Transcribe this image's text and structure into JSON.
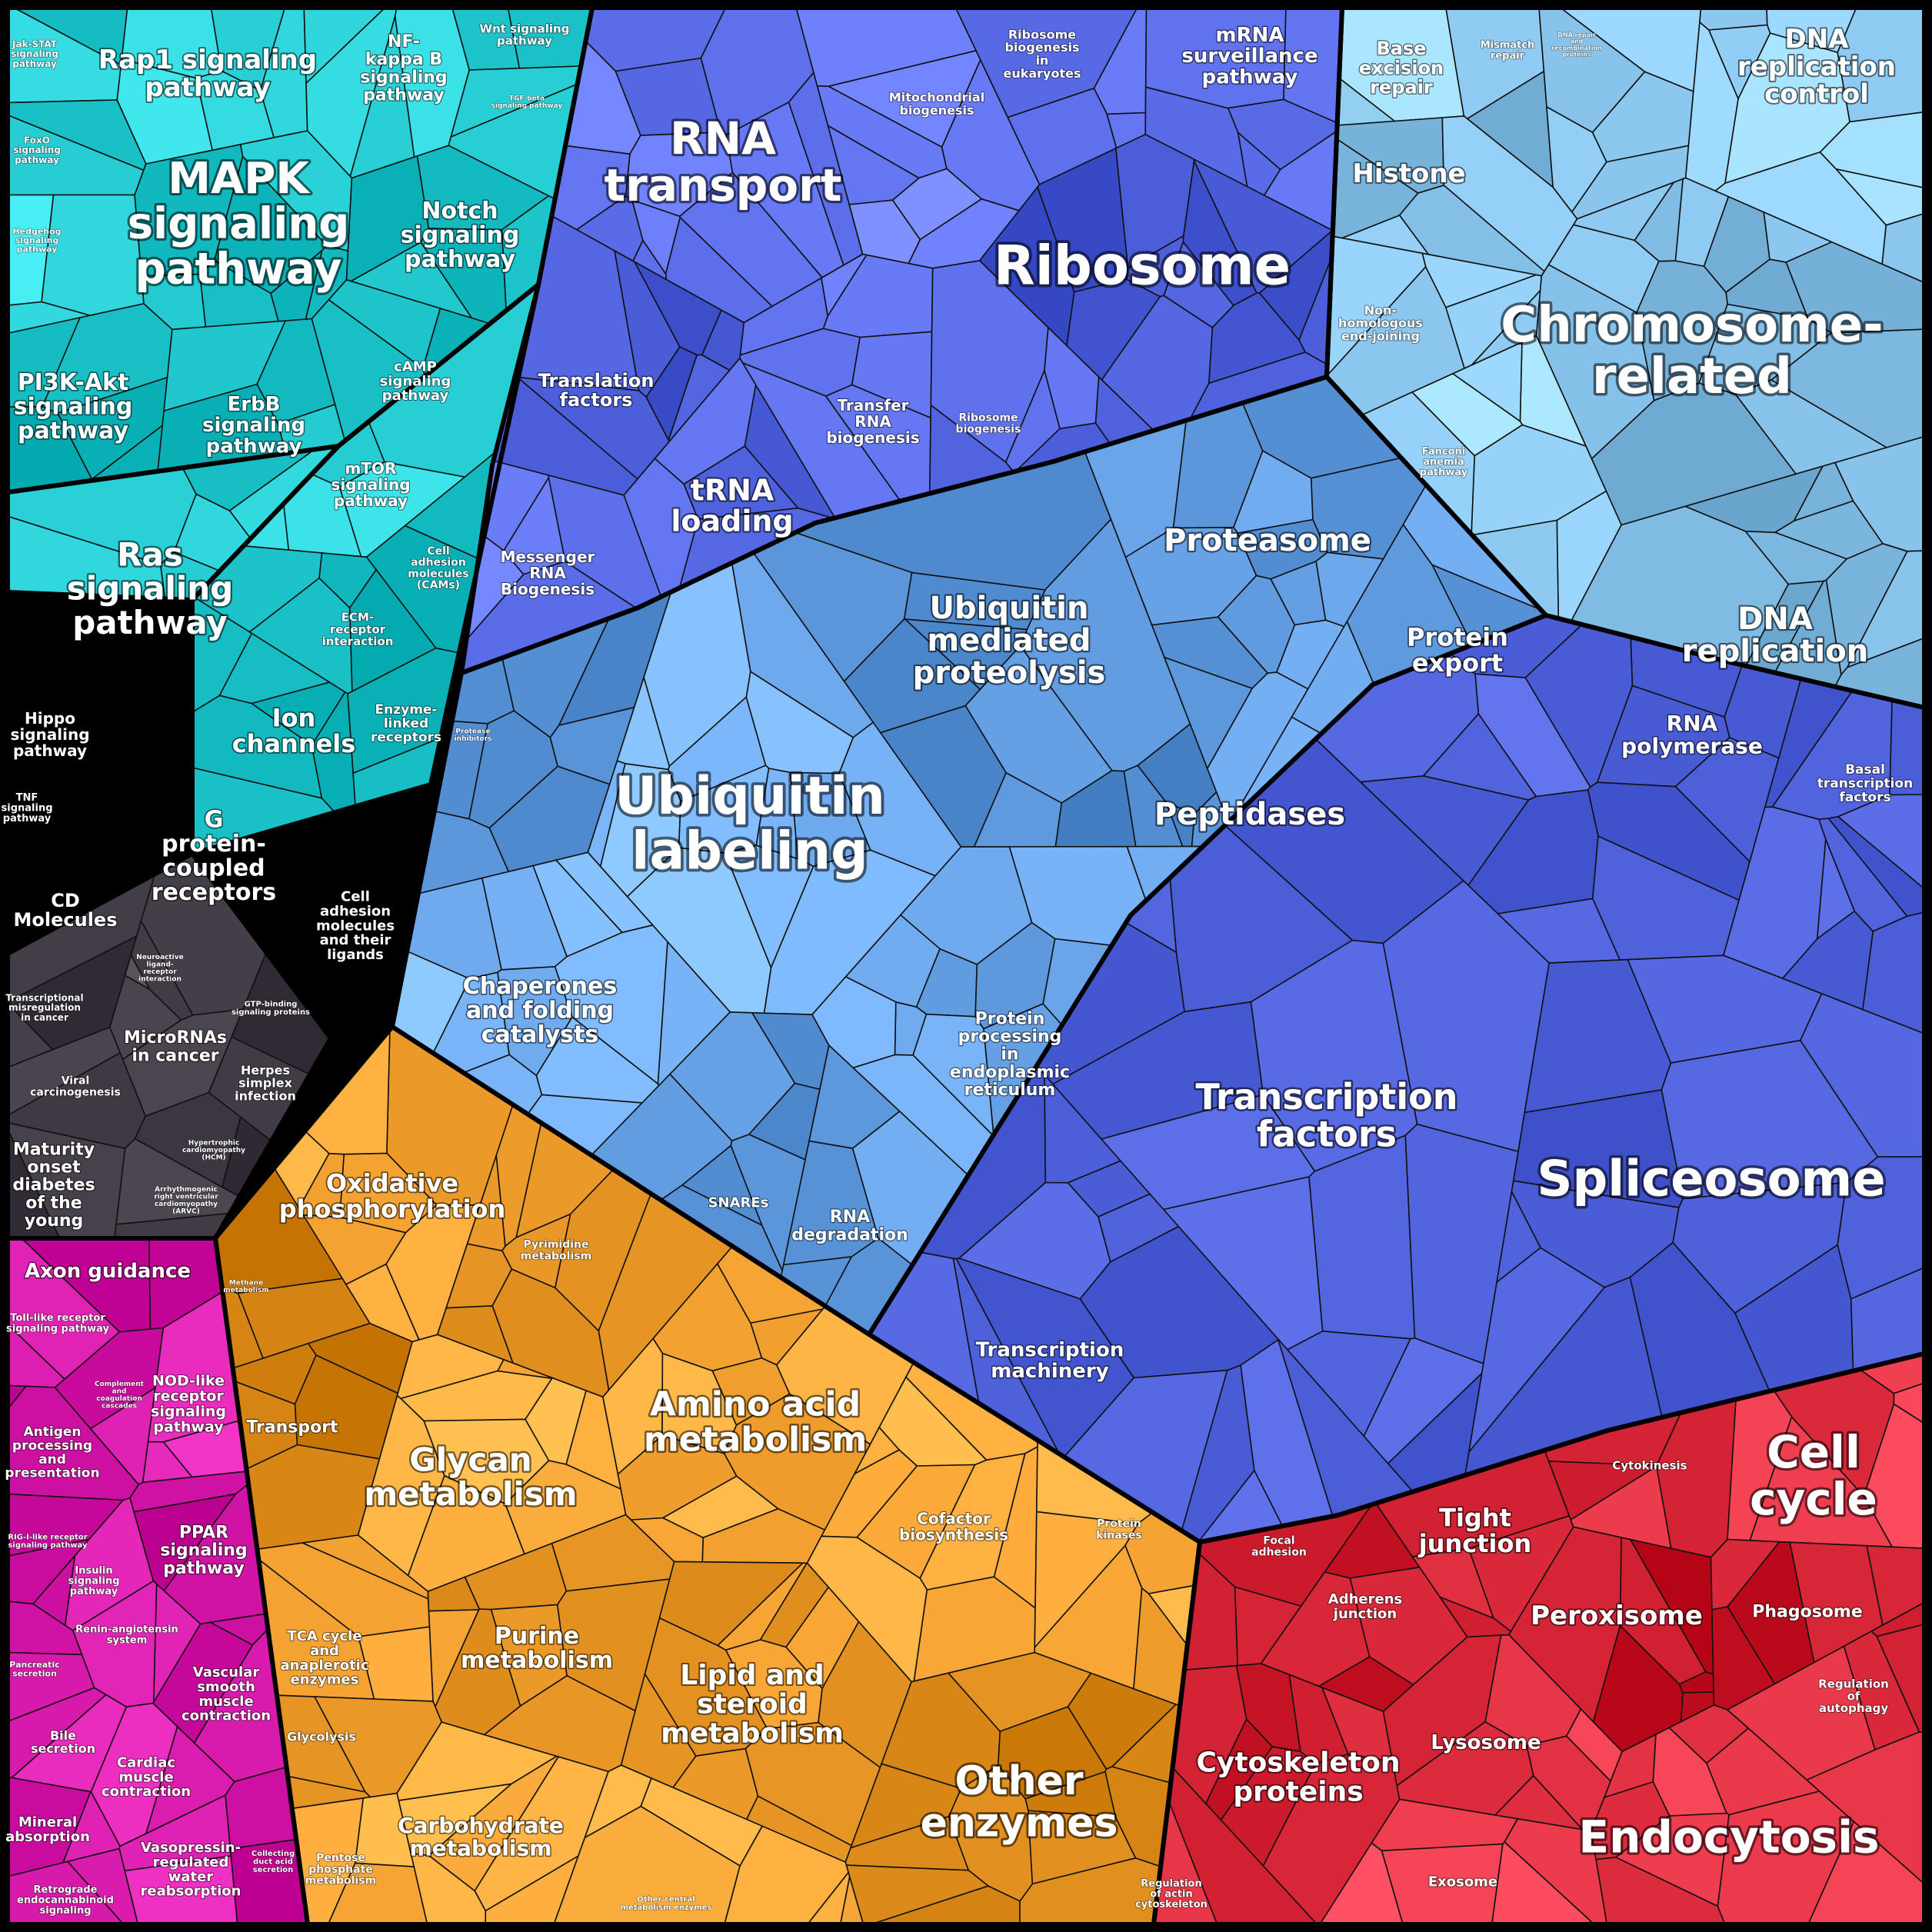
{
  "groups": [
    {
      "id": "signaling",
      "color": "#1fc7cc",
      "cells": [
        [
          [
            10,
            10
          ],
          [
            770,
            10
          ],
          [
            700,
            370
          ],
          [
            440,
            580
          ],
          [
            10,
            640
          ]
        ],
        [
          [
            10,
            640
          ],
          [
            440,
            580
          ],
          [
            250,
            780
          ],
          [
            10,
            770
          ]
        ],
        [
          [
            440,
            580
          ],
          [
            700,
            370
          ],
          [
            560,
            1020
          ],
          [
            250,
            1110
          ],
          [
            250,
            780
          ]
        ]
      ],
      "labels": [
        {
          "text": "Rap1 signaling\npathway",
          "size": 34,
          "interactable": true
        },
        {
          "text": "MAPK\nsignaling\npathway",
          "size": 56,
          "interactable": true
        },
        {
          "text": "NF-\nkappa B\nsignaling\npathway",
          "size": 22,
          "interactable": true
        },
        {
          "text": "Wnt signaling\npathway",
          "size": 15,
          "interactable": true
        },
        {
          "text": "TGF-beta\nsignaling pathway",
          "size": 9,
          "interactable": true
        },
        {
          "text": "Jak-STAT\nsignaling\npathway",
          "size": 12,
          "interactable": true
        },
        {
          "text": "FoxO\nsignaling\npathway",
          "size": 12,
          "interactable": true
        },
        {
          "text": "Hedgehog\nsignaling\npathway",
          "size": 11,
          "interactable": true
        },
        {
          "text": "Notch\nsignaling\npathway",
          "size": 30,
          "interactable": true
        },
        {
          "text": "PI3K-Akt\nsignaling\npathway",
          "size": 30,
          "interactable": true
        },
        {
          "text": "ErbB\nsignaling\npathway",
          "size": 26,
          "interactable": true
        },
        {
          "text": "cAMP\nsignaling\npathway",
          "size": 18,
          "interactable": true
        },
        {
          "text": "mTOR\nsignaling\npathway",
          "size": 20,
          "interactable": true
        },
        {
          "text": "Ras\nsignaling\npathway",
          "size": 42,
          "interactable": true
        },
        {
          "text": "Cell\nadhesion\nmolecules\n(CAMs)",
          "size": 14,
          "interactable": true
        },
        {
          "text": "ECM-\nreceptor\ninteraction",
          "size": 15,
          "interactable": true
        },
        {
          "text": "Hippo\nsignaling\npathway",
          "size": 20,
          "interactable": true
        },
        {
          "text": "Ion\nchannels",
          "size": 32,
          "interactable": true
        },
        {
          "text": "Enzyme-\nlinked\nreceptors",
          "size": 17,
          "interactable": true
        },
        {
          "text": "TNF\nsignaling\npathway",
          "size": 13,
          "interactable": true
        },
        {
          "text": "G\nprotein-\ncoupled\nreceptors",
          "size": 30,
          "interactable": true
        },
        {
          "text": "CD\nMolecules",
          "size": 24,
          "interactable": true
        },
        {
          "text": "Cell\nadhesion\nmolecules\nand their\nligands",
          "size": 18,
          "interactable": true
        },
        {
          "text": "Neuroactive\nligand-\nreceptor\ninteraction",
          "size": 9,
          "interactable": true
        },
        {
          "text": "GTP-binding\nsignaling proteins",
          "size": 10,
          "interactable": true
        }
      ]
    },
    {
      "id": "disease",
      "color": "#3b3640",
      "cells": [
        [
          [
            10,
            1240
          ],
          [
            250,
            1110
          ],
          [
            430,
            1350
          ],
          [
            280,
            1610
          ],
          [
            10,
            1610
          ]
        ]
      ],
      "labels": [
        {
          "text": "Transcriptional\nmisregulation\nin cancer",
          "size": 12,
          "interactable": true
        },
        {
          "text": "MicroRNAs\nin cancer",
          "size": 22,
          "interactable": true
        },
        {
          "text": "Viral\ncarcinogenesis",
          "size": 14,
          "interactable": true
        },
        {
          "text": "Herpes\nsimplex\ninfection",
          "size": 16,
          "interactable": true
        },
        {
          "text": "Hypertrophic\ncardiomyopathy\n(HCM)",
          "size": 9,
          "interactable": true
        },
        {
          "text": "Maturity\nonset\ndiabetes\nof the\nyoung",
          "size": 22,
          "interactable": true
        },
        {
          "text": "Arrhythmogenic\nright ventricular\ncardiomyopathy\n(ARVC)",
          "size": 9,
          "interactable": true
        }
      ]
    },
    {
      "id": "tissue",
      "color": "#d416a8",
      "cells": [
        [
          [
            10,
            1610
          ],
          [
            280,
            1610
          ],
          [
            400,
            2502
          ],
          [
            10,
            2502
          ]
        ]
      ],
      "labels": [
        {
          "text": "Axon guidance",
          "size": 26,
          "interactable": true
        },
        {
          "text": "Toll-like receptor\nsignaling pathway",
          "size": 13,
          "interactable": true
        },
        {
          "text": "Complement\nand\ncoagulation\ncascades",
          "size": 9,
          "interactable": true
        },
        {
          "text": "NOD-like\nreceptor\nsignaling\npathway",
          "size": 19,
          "interactable": true
        },
        {
          "text": "Antigen\nprocessing\nand\npresentation",
          "size": 17,
          "interactable": true
        },
        {
          "text": "RIG-I-like receptor\nsignaling pathway",
          "size": 10,
          "interactable": true
        },
        {
          "text": "PPAR\nsignaling\npathway",
          "size": 22,
          "interactable": true
        },
        {
          "text": "Insulin\nsignaling\npathway",
          "size": 13,
          "interactable": true
        },
        {
          "text": "Renin-angiotensin\nsystem",
          "size": 13,
          "interactable": true
        },
        {
          "text": "Pancreatic\nsecretion",
          "size": 11,
          "interactable": true
        },
        {
          "text": "Vascular\nsmooth\nmuscle\ncontraction",
          "size": 18,
          "interactable": true
        },
        {
          "text": "Bile\nsecretion",
          "size": 16,
          "interactable": true
        },
        {
          "text": "Cardiac\nmuscle\ncontraction",
          "size": 18,
          "interactable": true
        },
        {
          "text": "Mineral\nabsorption",
          "size": 18,
          "interactable": true
        },
        {
          "text": "Vasopressin-\nregulated\nwater\nreabsorption",
          "size": 18,
          "interactable": true
        },
        {
          "text": "Collecting\nduct acid\nsecretion",
          "size": 10,
          "interactable": true
        },
        {
          "text": "Retrograde\nendocannabinoid\nsignaling",
          "size": 13,
          "interactable": true
        }
      ]
    },
    {
      "id": "rna",
      "color": "#5a6ce8",
      "cells": [
        [
          [
            770,
            10
          ],
          [
            1745,
            10
          ],
          [
            1725,
            490
          ],
          [
            1370,
            600
          ],
          [
            1060,
            680
          ],
          [
            830,
            790
          ],
          [
            600,
            875
          ],
          [
            640,
            605
          ],
          [
            700,
            370
          ]
        ]
      ],
      "labels": [
        {
          "text": "RNA\ntransport",
          "size": 58,
          "interactable": true
        },
        {
          "text": "Mitochondrial\nbiogenesis",
          "size": 16,
          "interactable": true
        },
        {
          "text": "Ribosome\nbiogenesis\nin\neukaryotes",
          "size": 16,
          "interactable": true
        },
        {
          "text": "mRNA\nsurveillance\npathway",
          "size": 26,
          "interactable": true
        },
        {
          "text": "Ribosome",
          "size": 70,
          "interactable": true
        },
        {
          "text": "Translation\nfactors",
          "size": 24,
          "interactable": true
        },
        {
          "text": "tRNA\nloading",
          "size": 38,
          "interactable": true
        },
        {
          "text": "Transfer\nRNA\nbiogenesis",
          "size": 20,
          "interactable": true
        },
        {
          "text": "Ribosome\nbiogenesis",
          "size": 14,
          "interactable": true
        },
        {
          "text": "Messenger\nRNA\nBiogenesis",
          "size": 20,
          "interactable": true
        }
      ]
    },
    {
      "id": "chromosome",
      "color": "#8cc8f0",
      "cells": [
        [
          [
            1745,
            10
          ],
          [
            2502,
            10
          ],
          [
            2502,
            920
          ],
          [
            2245,
            860
          ],
          [
            2010,
            800
          ],
          [
            1725,
            490
          ]
        ]
      ],
      "labels": [
        {
          "text": "Base\nexcision\nrepair",
          "size": 24,
          "interactable": true
        },
        {
          "text": "Mismatch\nrepair",
          "size": 13,
          "interactable": true
        },
        {
          "text": "DNA repair\nand\nrecombination\nproteins",
          "size": 8,
          "interactable": true
        },
        {
          "text": "DNA\nreplication\ncontrol",
          "size": 34,
          "interactable": true
        },
        {
          "text": "Histone",
          "size": 34,
          "interactable": true
        },
        {
          "text": "Non-\nhomologous\nend-joining",
          "size": 16,
          "interactable": true
        },
        {
          "text": "Chromosome-\nrelated",
          "size": 64,
          "interactable": true
        },
        {
          "text": "Fanconi\nanemia\npathway",
          "size": 13,
          "interactable": true
        },
        {
          "text": "DNA\nreplication",
          "size": 40,
          "interactable": true
        }
      ]
    },
    {
      "id": "protein",
      "color": "#6aa5ea",
      "cells": [
        [
          [
            600,
            875
          ],
          [
            830,
            790
          ],
          [
            1060,
            680
          ],
          [
            1370,
            600
          ],
          [
            1725,
            490
          ],
          [
            2010,
            800
          ],
          [
            1785,
            890
          ],
          [
            1470,
            1190
          ],
          [
            1130,
            1735
          ],
          [
            510,
            1335
          ]
        ]
      ],
      "labels": [
        {
          "text": "Ubiquitin\nmediated\nproteolysis",
          "size": 40,
          "interactable": true
        },
        {
          "text": "Proteasome",
          "size": 40,
          "interactable": true
        },
        {
          "text": "Protein\nexport",
          "size": 32,
          "interactable": true
        },
        {
          "text": "Protease\ninhibitors",
          "size": 9,
          "interactable": true
        },
        {
          "text": "Ubiquitin\nlabeling",
          "size": 68,
          "interactable": true
        },
        {
          "text": "Peptidases",
          "size": 40,
          "interactable": true
        },
        {
          "text": "Chaperones\nand folding\ncatalysts",
          "size": 30,
          "interactable": true
        },
        {
          "text": "Protein\nprocessing\nin\nendoplasmic\nreticulum",
          "size": 22,
          "interactable": true
        },
        {
          "text": "SNAREs",
          "size": 18,
          "interactable": true
        },
        {
          "text": "RNA\ndegradation",
          "size": 22,
          "interactable": true
        }
      ]
    },
    {
      "id": "transcription",
      "color": "#4455d0",
      "cells": [
        [
          [
            1130,
            1735
          ],
          [
            1470,
            1190
          ],
          [
            1785,
            890
          ],
          [
            2010,
            800
          ],
          [
            2245,
            860
          ],
          [
            2502,
            920
          ],
          [
            2502,
            1760
          ],
          [
            2090,
            1860
          ],
          [
            1740,
            1970
          ],
          [
            1560,
            2005
          ]
        ]
      ],
      "labels": [
        {
          "text": "RNA\npolymerase",
          "size": 28,
          "interactable": true
        },
        {
          "text": "Basal\ntranscription\nfactors",
          "size": 17,
          "interactable": true
        },
        {
          "text": "Transcription\nfactors",
          "size": 46,
          "interactable": true
        },
        {
          "text": "Spliceosome",
          "size": 64,
          "interactable": true
        },
        {
          "text": "Transcription\nmachinery",
          "size": 26,
          "interactable": true
        }
      ]
    },
    {
      "id": "metabolism",
      "color": "#eb9a2a",
      "cells": [
        [
          [
            510,
            1335
          ],
          [
            1130,
            1735
          ],
          [
            1560,
            2005
          ],
          [
            1500,
            2502
          ],
          [
            400,
            2502
          ],
          [
            280,
            1610
          ]
        ]
      ],
      "labels": [
        {
          "text": "Oxidative\nphosphorylation",
          "size": 32,
          "interactable": true
        },
        {
          "text": "Pyrimidine\nmetabolism",
          "size": 14,
          "interactable": true
        },
        {
          "text": "Methane\nmetabolism",
          "size": 9,
          "interactable": true
        },
        {
          "text": "Amino acid\nmetabolism",
          "size": 44,
          "interactable": true
        },
        {
          "text": "Transport",
          "size": 22,
          "interactable": true
        },
        {
          "text": "Glycan\nmetabolism",
          "size": 42,
          "interactable": true
        },
        {
          "text": "Cofactor\nbiosynthesis",
          "size": 20,
          "interactable": true
        },
        {
          "text": "Protein\nkinases",
          "size": 14,
          "interactable": true
        },
        {
          "text": "Purine\nmetabolism",
          "size": 30,
          "interactable": true
        },
        {
          "text": "Lipid and\nsteroid\nmetabolism",
          "size": 36,
          "interactable": true
        },
        {
          "text": "TCA cycle\nand\nanaplerotic\nenzymes",
          "size": 18,
          "interactable": true
        },
        {
          "text": "Glycolysis",
          "size": 16,
          "interactable": true
        },
        {
          "text": "Other\nenzymes",
          "size": 52,
          "interactable": true
        },
        {
          "text": "Carbohydrate\nmetabolism",
          "size": 28,
          "interactable": true
        },
        {
          "text": "Pentose\nphosphate\nmetabolism",
          "size": 14,
          "interactable": true
        },
        {
          "text": "Other central\nmetabolism enzymes",
          "size": 10,
          "interactable": true
        }
      ]
    },
    {
      "id": "cellular",
      "color": "#d8283a",
      "cells": [
        [
          [
            1560,
            2005
          ],
          [
            1740,
            1970
          ],
          [
            2090,
            1860
          ],
          [
            2502,
            1760
          ],
          [
            2502,
            2502
          ],
          [
            1500,
            2502
          ]
        ]
      ],
      "labels": [
        {
          "text": "Cytokinesis",
          "size": 15,
          "interactable": true
        },
        {
          "text": "Cell\ncycle",
          "size": 58,
          "interactable": true
        },
        {
          "text": "Tight\njunction",
          "size": 32,
          "interactable": true
        },
        {
          "text": "Focal\nadhesion",
          "size": 14,
          "interactable": true
        },
        {
          "text": "Adherens\njunction",
          "size": 18,
          "interactable": true
        },
        {
          "text": "Peroxisome",
          "size": 34,
          "interactable": true
        },
        {
          "text": "Phagosome",
          "size": 22,
          "interactable": true
        },
        {
          "text": "Regulation\nof\nautophagy",
          "size": 15,
          "interactable": true
        },
        {
          "text": "Cytoskeleton\nproteins",
          "size": 36,
          "interactable": true
        },
        {
          "text": "Lysosome",
          "size": 26,
          "interactable": true
        },
        {
          "text": "Endocytosis",
          "size": 58,
          "interactable": true
        },
        {
          "text": "Regulation\nof actin\ncytoskeleton",
          "size": 13,
          "interactable": true
        },
        {
          "text": "Exosome",
          "size": 18,
          "interactable": true
        }
      ]
    }
  ]
}
